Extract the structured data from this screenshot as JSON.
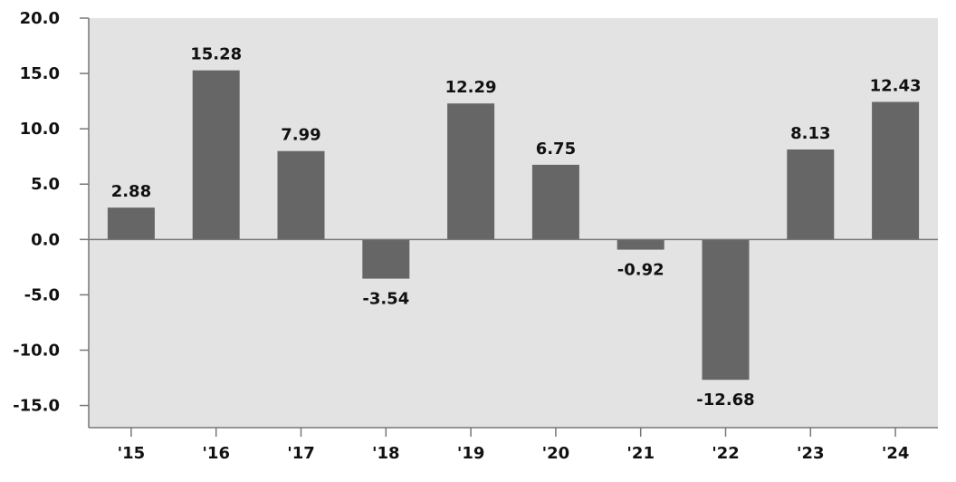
{
  "chart_data": {
    "type": "bar",
    "categories": [
      "'15",
      "'16",
      "'17",
      "'18",
      "'19",
      "'20",
      "'21",
      "'22",
      "'23",
      "'24"
    ],
    "values": [
      2.88,
      15.28,
      7.99,
      -3.54,
      12.29,
      6.75,
      -0.92,
      -12.68,
      8.13,
      12.43
    ],
    "value_labels": [
      "2.88",
      "15.28",
      "7.99",
      "-3.54",
      "12.29",
      "6.75",
      "-0.92",
      "-12.68",
      "8.13",
      "12.43"
    ],
    "y_ticks": [
      "20.0",
      "15.0",
      "10.0",
      "5.0",
      "0.0",
      "-5.0",
      "-10.0",
      "-15.0"
    ],
    "ylim": [
      -17,
      20
    ],
    "title": "",
    "xlabel": "",
    "ylabel": "",
    "grid": false,
    "colors": {
      "bar": "#666666",
      "plot_background": "#e3e3e3",
      "axis": "#777777"
    }
  }
}
